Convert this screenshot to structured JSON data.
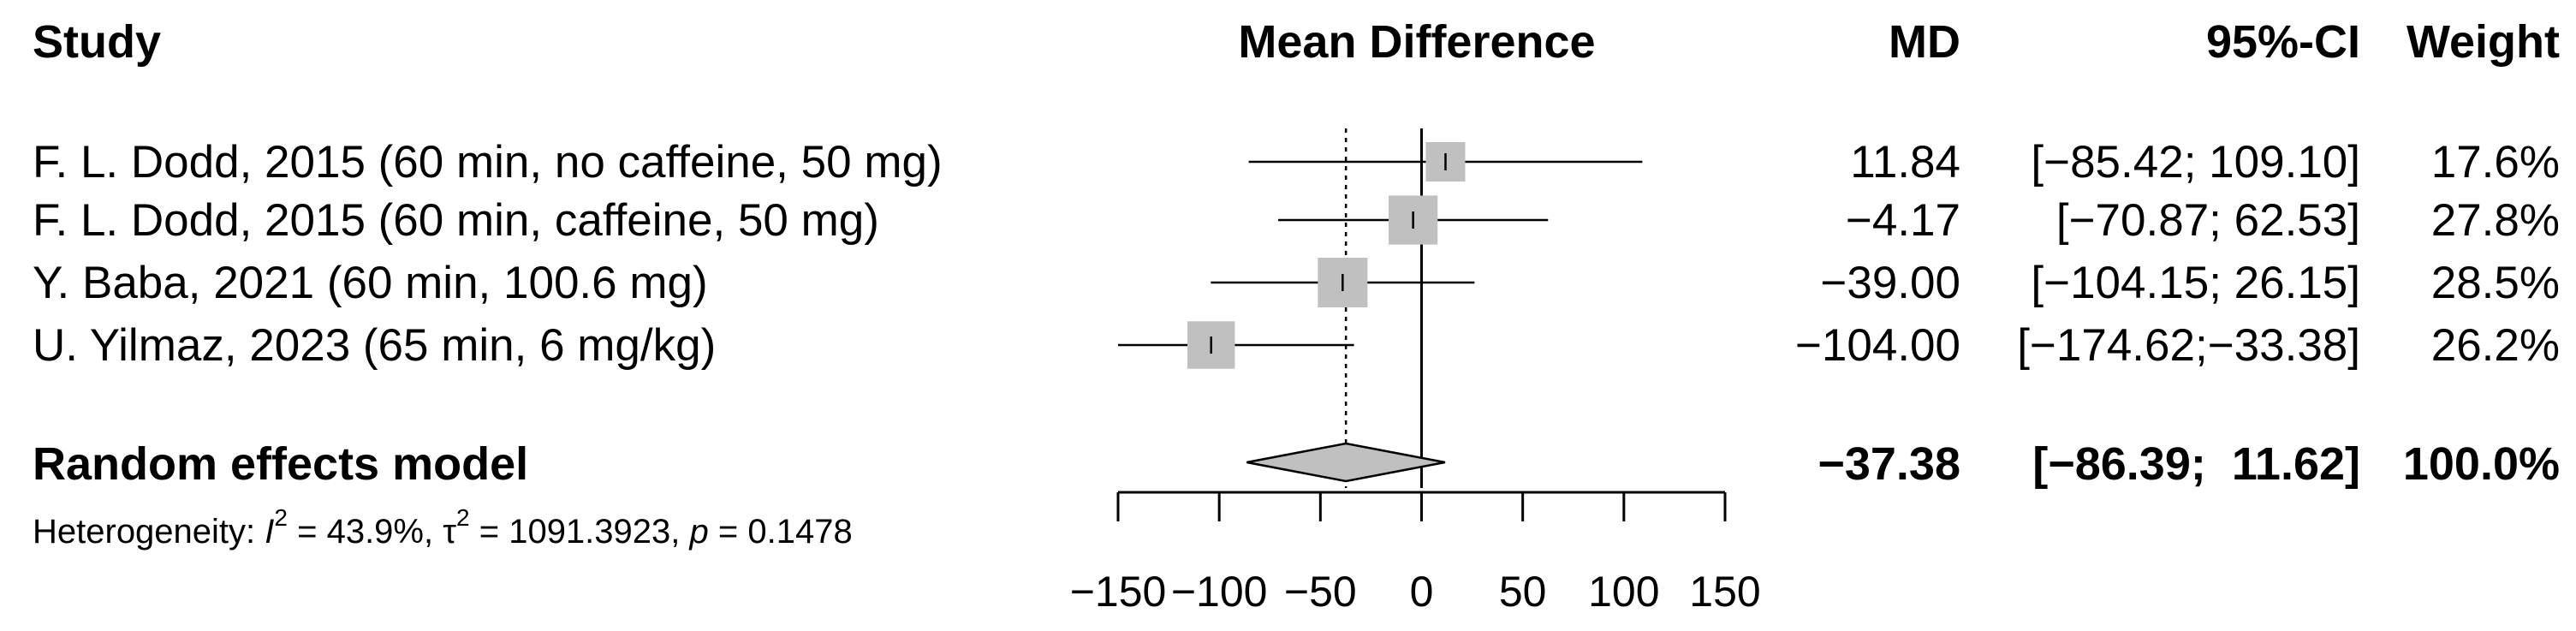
{
  "chart_data": {
    "type": "forest",
    "title": "",
    "headers": {
      "study": "Study",
      "effect": "Mean Difference",
      "md": "MD",
      "ci": "95%-CI",
      "weight": "Weight"
    },
    "studies": [
      {
        "label": "F. L. Dodd, 2015 (60 min, no caffeine, 50 mg)",
        "md": 11.84,
        "lower": -85.42,
        "upper": 109.1,
        "md_text": "11.84",
        "ci_text": "[−85.42; 109.10]",
        "weight_text": "17.6%",
        "weight": 17.6
      },
      {
        "label": "F. L. Dodd, 2015 (60 min, caffeine, 50 mg)",
        "md": -4.17,
        "lower": -70.87,
        "upper": 62.53,
        "md_text": "−4.17",
        "ci_text": "[−70.87;  62.53]",
        "weight_text": "27.8%",
        "weight": 27.8
      },
      {
        "label": "Y. Baba, 2021 (60 min, 100.6 mg)",
        "md": -39.0,
        "lower": -104.15,
        "upper": 26.15,
        "md_text": "−39.00",
        "ci_text": "[−104.15;  26.15]",
        "weight_text": "28.5%",
        "weight": 28.5
      },
      {
        "label": "U. Yilmaz, 2023 (65 min, 6 mg/kg)",
        "md": -104.0,
        "lower": -174.62,
        "upper": -33.38,
        "md_text": "−104.00",
        "ci_text": "[−174.62;−33.38]",
        "weight_text": "26.2%",
        "weight": 26.2
      }
    ],
    "pooled": {
      "label": "Random effects model",
      "md": -37.38,
      "lower": -86.39,
      "upper": 11.62,
      "md_text": "−37.38",
      "ci_text": "[−86.39;  11.62]",
      "weight_text": "100.0%"
    },
    "heterogeneity": {
      "prefix": "Heterogeneity: ",
      "i2_symbol": "I",
      "sup": "2",
      "i2_value": " = 43.9%, ",
      "tau_symbol": "τ",
      "tau2_value": " = 1091.3923, ",
      "p_symbol": "p",
      "p_value": " = 0.1478"
    },
    "x_axis": {
      "ticks": [
        -150,
        -100,
        -50,
        0,
        50,
        100,
        150
      ],
      "tick_labels": [
        "−150",
        "−100",
        "−50",
        "0",
        "50",
        "100",
        "150"
      ],
      "xlim": [
        -150,
        150
      ]
    },
    "colors": {
      "square": "#c0c0c0",
      "diamond": "#c0c0c0",
      "line": "#000000"
    }
  }
}
